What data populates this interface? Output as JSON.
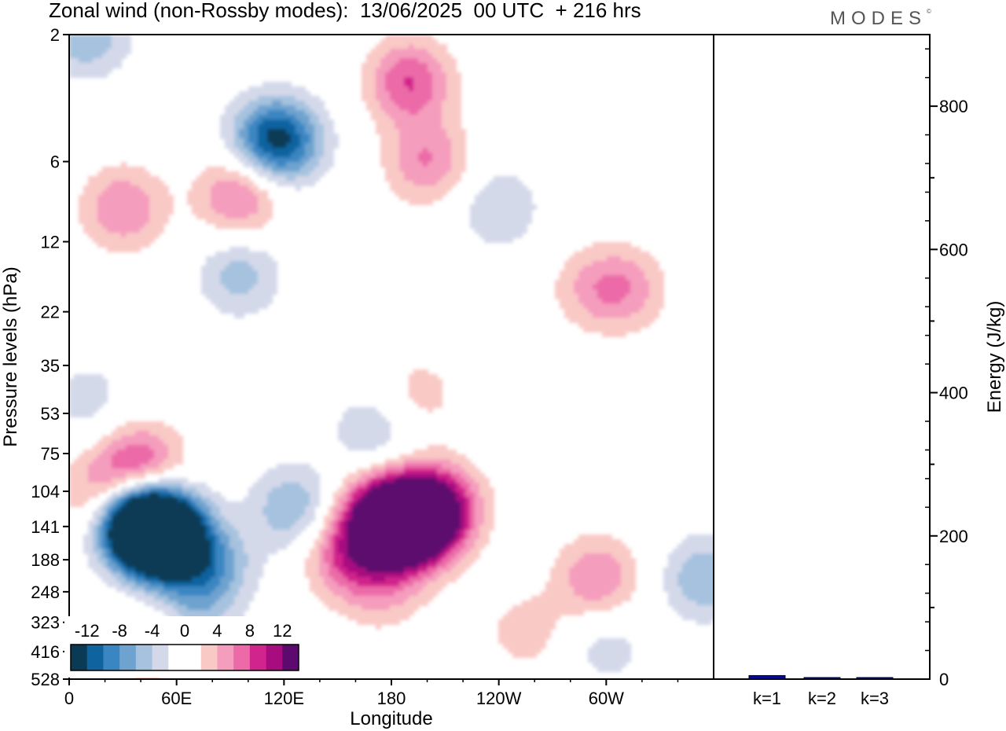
{
  "header": {
    "title": "Zonal wind (non-Rossby modes):  13/06/2025  00 UTC  + 216 hrs",
    "brand": "MODES",
    "brand_mark": "©"
  },
  "colors": {
    "palette": [
      "#0b3a55",
      "#0f64a0",
      "#3a86c2",
      "#6ea3cf",
      "#a6c2df",
      "#d4d9ea",
      "#ffffff",
      "#ffffff",
      "#f9c9c6",
      "#f59dbd",
      "#ec6aa8",
      "#d1248c",
      "#a80d80",
      "#5c0a6e"
    ],
    "bar": "#0a0a8c"
  },
  "chart_data": [
    {
      "type": "heatmap",
      "title": "Zonal wind (non-Rossby modes):  13/06/2025  00 UTC  + 216 hrs",
      "xlabel": "Longitude",
      "ylabel": "Pressure levels (hPa)",
      "x_ticks": [
        "0",
        "60E",
        "120E",
        "180",
        "120W",
        "60W"
      ],
      "y_ticks": [
        "2",
        "6",
        "12",
        "22",
        "35",
        "53",
        "75",
        "104",
        "141",
        "188",
        "248",
        "323",
        "416",
        "528"
      ],
      "colorbar_labels": [
        "-12",
        "-8",
        "-4",
        "0",
        "4",
        "8",
        "12"
      ],
      "features": [
        {
          "lon": 45,
          "p": 141,
          "value": -16
        },
        {
          "lon": 55,
          "p": 160,
          "value": -14
        },
        {
          "lon": 35,
          "p": 130,
          "value": -12
        },
        {
          "lon": 80,
          "p": 200,
          "value": -6
        },
        {
          "lon": 70,
          "p": 300,
          "value": -4
        },
        {
          "lon": 125,
          "p": 120,
          "value": -6
        },
        {
          "lon": 10,
          "p": 2,
          "value": -6
        },
        {
          "lon": 120,
          "p": 5,
          "value": -8
        },
        {
          "lon": 110,
          "p": 5,
          "value": -6
        },
        {
          "lon": 95,
          "p": 16,
          "value": -5
        },
        {
          "lon": 240,
          "p": 9,
          "value": -4
        },
        {
          "lon": 170,
          "p": 62,
          "value": -4
        },
        {
          "lon": 355,
          "p": 220,
          "value": -6
        },
        {
          "lon": 10,
          "p": 47,
          "value": -3
        },
        {
          "lon": 300,
          "p": 400,
          "value": -3
        },
        {
          "lon": 190,
          "p": 141,
          "value": 16
        },
        {
          "lon": 175,
          "p": 130,
          "value": 13
        },
        {
          "lon": 205,
          "p": 120,
          "value": 12
        },
        {
          "lon": 155,
          "p": 180,
          "value": 7
        },
        {
          "lon": 175,
          "p": 240,
          "value": 4
        },
        {
          "lon": 40,
          "p": 85,
          "value": 9
        },
        {
          "lon": 20,
          "p": 110,
          "value": 7
        },
        {
          "lon": 30,
          "p": 9,
          "value": 6
        },
        {
          "lon": 95,
          "p": 8,
          "value": 7
        },
        {
          "lon": 190,
          "p": 3,
          "value": 8
        },
        {
          "lon": 200,
          "p": 6,
          "value": 6
        },
        {
          "lon": 310,
          "p": 18,
          "value": 5
        },
        {
          "lon": 290,
          "p": 18,
          "value": 3
        },
        {
          "lon": 195,
          "p": 45,
          "value": 3
        },
        {
          "lon": 295,
          "p": 220,
          "value": 6
        },
        {
          "lon": 255,
          "p": 350,
          "value": 3
        },
        {
          "lon": 45,
          "p": 400,
          "value": 4
        }
      ]
    },
    {
      "type": "bar",
      "ylabel": "Energy (J/kg)",
      "categories": [
        "k=1",
        "k=2",
        "k=3"
      ],
      "values": [
        5,
        2,
        1
      ],
      "ylim": [
        0,
        900
      ],
      "y_ticks": [
        0,
        200,
        400,
        600,
        800
      ]
    }
  ]
}
